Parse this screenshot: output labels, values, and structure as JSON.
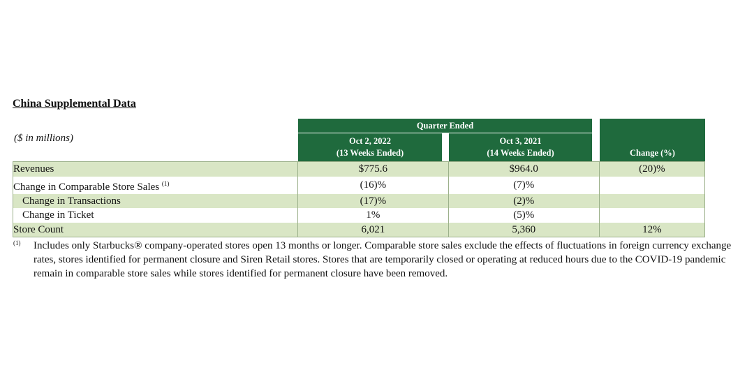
{
  "title": "China Supplemental Data",
  "units": "($ in millions)",
  "header": {
    "group": "Quarter Ended",
    "col1_date": "Oct 2, 2022",
    "col1_weeks": "(13 Weeks Ended)",
    "col2_date": "Oct 3, 2021",
    "col2_weeks": "(14 Weeks Ended)",
    "col3": "Change (%)"
  },
  "rows": [
    {
      "label": "Revenues",
      "v2022": "$775.6",
      "v2021": "$964.0",
      "change": "(20)%"
    },
    {
      "label": "Change in Comparable Store Sales",
      "sup": "(1)",
      "v2022": "(16)%",
      "v2021": "(7)%",
      "change": ""
    },
    {
      "label": "Change in Transactions",
      "v2022": "(17)%",
      "v2021": "(2)%",
      "change": ""
    },
    {
      "label": "Change in Ticket",
      "v2022": "1%",
      "v2021": "(5)%",
      "change": ""
    },
    {
      "label": "Store Count",
      "v2022": "6,021",
      "v2021": "5,360",
      "change": "12%"
    }
  ],
  "footnote": {
    "mark": "(1)",
    "text": "Includes only Starbucks® company-operated stores open 13 months or longer. Comparable store sales exclude the effects of fluctuations in foreign currency exchange rates, stores identified for permanent closure and Siren Retail stores. Stores that are temporarily closed or operating at reduced hours due to the COVID-19 pandemic remain in comparable store sales while stores identified for permanent closure have been removed."
  },
  "colors": {
    "header_green": "#1f6a3d",
    "row_shade": "#d9e6c5"
  }
}
